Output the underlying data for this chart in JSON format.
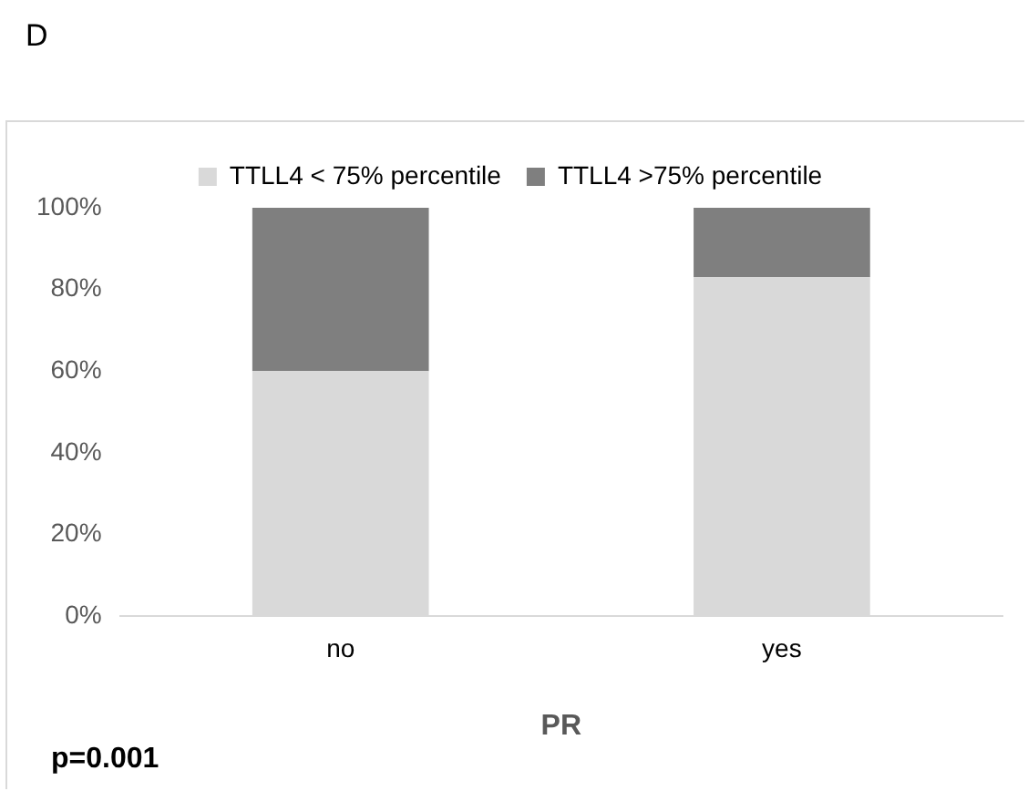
{
  "chart_data": {
    "type": "bar",
    "title": "D",
    "xlabel": "PR",
    "stacked": true,
    "categories": [
      "no",
      "yes"
    ],
    "series": [
      {
        "name": "TTLL4 < 75% percentile",
        "color": "#d9d9d9",
        "values": [
          60,
          83
        ]
      },
      {
        "name": "TTLL4 >75% percentile",
        "color": "#7f7f7f",
        "values": [
          40,
          17
        ]
      }
    ],
    "ylim": [
      0,
      100
    ],
    "yticks": [
      {
        "value": 0,
        "label": "0%"
      },
      {
        "value": 20,
        "label": "20%"
      },
      {
        "value": 40,
        "label": "40%"
      },
      {
        "value": 60,
        "label": "60%"
      },
      {
        "value": 80,
        "label": "80%"
      },
      {
        "value": 100,
        "label": "100%"
      }
    ],
    "grid": false,
    "legend": "top",
    "annotations": [
      "p=0.001"
    ]
  }
}
